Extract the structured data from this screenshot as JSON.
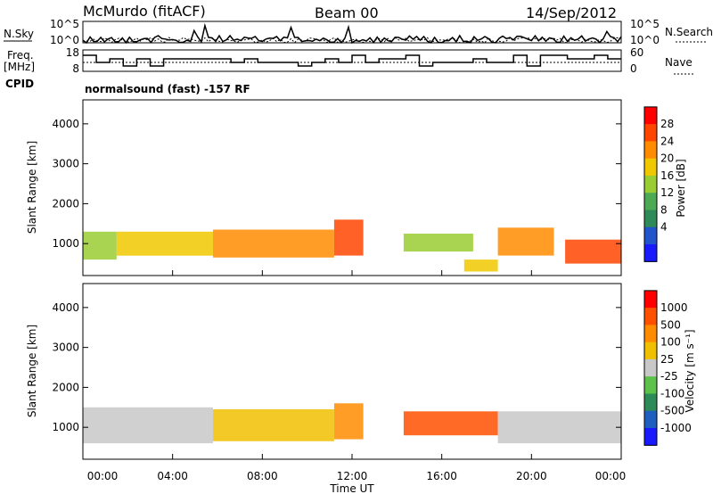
{
  "header": {
    "station": "McMurdo (fitACF)",
    "beam": "Beam 00",
    "date": "14/Sep/2012"
  },
  "panels": {
    "nsky": {
      "left_label": "N.Sky",
      "right_label": "N.Search",
      "left_ticks": [
        "10^5",
        "10^0"
      ],
      "right_ticks": [
        "10^5",
        "10^0"
      ]
    },
    "freq": {
      "left_label_1": "Freq.",
      "left_label_2": "[MHz]",
      "right_label": "Nave",
      "left_ticks": [
        "18",
        "8"
      ],
      "right_ticks": [
        "60",
        "0"
      ]
    },
    "cpid": {
      "label": "CPID",
      "value": "normalsound (fast) -157 RF"
    }
  },
  "chart_data": [
    {
      "type": "heatmap",
      "name": "power",
      "ylabel": "Slant Range [km]",
      "yticks": [
        "4000",
        "3000",
        "2000",
        "1000"
      ],
      "ylim": [
        200,
        4600
      ],
      "xlim": [
        0,
        24
      ],
      "colorbar": {
        "label": "Power [dB]",
        "ticks": [
          "28",
          "24",
          "20",
          "16",
          "12",
          "8",
          "4"
        ],
        "colors": [
          "#1a1aff",
          "#2255cc",
          "#2e8b57",
          "#4caa55",
          "#9acd32",
          "#f0c800",
          "#ff8c00",
          "#ff4500",
          "#ff0000"
        ]
      },
      "bands": [
        {
          "start": 0.0,
          "end": 1.5,
          "lower": 600,
          "upper": 1300
        },
        {
          "start": 1.5,
          "end": 5.8,
          "lower": 700,
          "upper": 1300
        },
        {
          "start": 5.8,
          "end": 11.2,
          "lower": 650,
          "upper": 1350
        },
        {
          "start": 11.2,
          "end": 12.5,
          "lower": 700,
          "upper": 1600
        },
        {
          "start": 14.3,
          "end": 17.4,
          "lower": 800,
          "upper": 1250
        },
        {
          "start": 17.0,
          "end": 18.5,
          "lower": 300,
          "upper": 600
        },
        {
          "start": 18.5,
          "end": 21.0,
          "lower": 700,
          "upper": 1400
        },
        {
          "start": 21.5,
          "end": 24.0,
          "lower": 500,
          "upper": 1100
        }
      ]
    },
    {
      "type": "heatmap",
      "name": "velocity",
      "ylabel": "Slant Range [km]",
      "yticks": [
        "4000",
        "3000",
        "2000",
        "1000"
      ],
      "ylim": [
        200,
        4600
      ],
      "xlim": [
        0,
        24
      ],
      "colorbar": {
        "label": "Velocity [m s⁻¹]",
        "ticks": [
          "1000",
          "500",
          "100",
          "25",
          "-25",
          "-100",
          "-500",
          "-1000"
        ],
        "colors": [
          "#1a1aff",
          "#1f5fbf",
          "#2e8b57",
          "#5cc24a",
          "#c8c8c8",
          "#f0c000",
          "#ff8c00",
          "#ff5000",
          "#ff0000"
        ]
      },
      "bands": [
        {
          "start": 0.0,
          "end": 5.8,
          "lower": 600,
          "upper": 1500
        },
        {
          "start": 5.8,
          "end": 11.2,
          "lower": 650,
          "upper": 1450
        },
        {
          "start": 11.2,
          "end": 12.5,
          "lower": 700,
          "upper": 1600
        },
        {
          "start": 14.3,
          "end": 18.5,
          "lower": 800,
          "upper": 1400
        },
        {
          "start": 18.5,
          "end": 24.0,
          "lower": 600,
          "upper": 1400
        }
      ]
    }
  ],
  "xaxis": {
    "label": "Time UT",
    "ticks": [
      "00:00",
      "04:00",
      "08:00",
      "12:00",
      "16:00",
      "20:00",
      "00:00"
    ]
  }
}
